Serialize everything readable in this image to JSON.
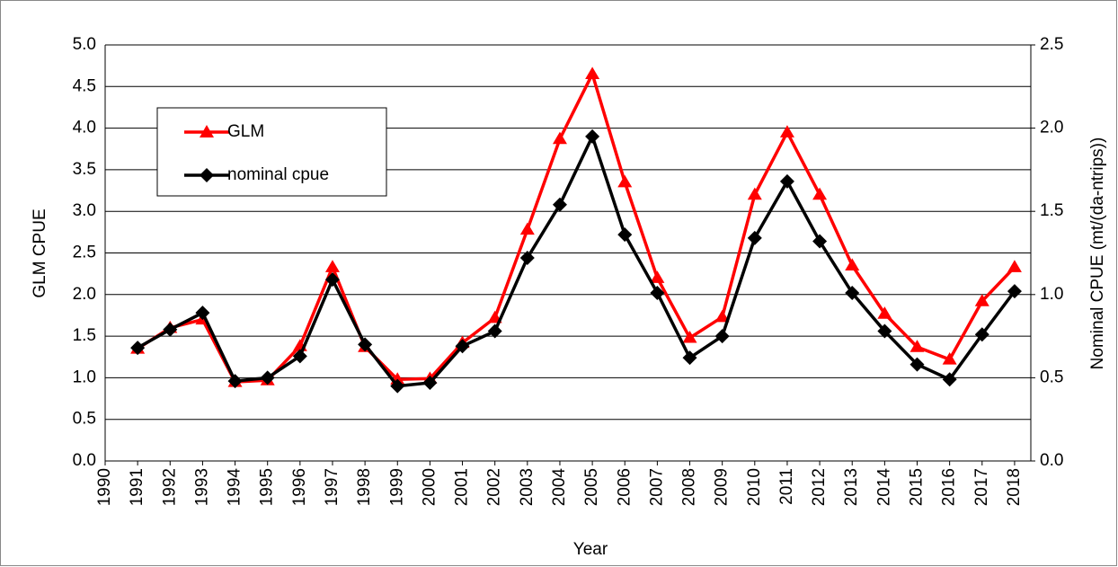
{
  "chart_data": {
    "type": "line",
    "x_label": "Year",
    "y_label": "GLM CPUE",
    "y2_label": "Nominal CPUE (mt/(da-ntrips))",
    "x": [
      1991,
      1992,
      1993,
      1994,
      1995,
      1996,
      1997,
      1998,
      1999,
      2000,
      2001,
      2002,
      2003,
      2004,
      2005,
      2006,
      2007,
      2008,
      2009,
      2010,
      2011,
      2012,
      2013,
      2014,
      2015,
      2016,
      2017,
      2018
    ],
    "series": [
      {
        "name": "GLM",
        "color": "#ff0000",
        "marker": "triangle",
        "axis": "y",
        "values": [
          1.35,
          1.6,
          1.7,
          0.95,
          0.97,
          1.38,
          2.33,
          1.37,
          0.98,
          0.99,
          1.42,
          1.72,
          2.78,
          3.87,
          4.65,
          3.35,
          2.2,
          1.48,
          1.73,
          3.2,
          3.95,
          3.2,
          2.35,
          1.77,
          1.37,
          1.22,
          1.92,
          2.33
        ]
      },
      {
        "name": "nominal cpue",
        "color": "#000000",
        "marker": "diamond",
        "axis": "y2",
        "values": [
          0.68,
          0.79,
          0.89,
          0.48,
          0.5,
          0.63,
          1.09,
          0.7,
          0.45,
          0.47,
          0.69,
          0.78,
          1.22,
          1.54,
          1.95,
          1.36,
          1.01,
          0.62,
          0.75,
          1.34,
          1.68,
          1.32,
          1.01,
          0.78,
          0.58,
          0.49,
          0.76,
          1.02
        ]
      }
    ],
    "xlim": [
      1990,
      2018.5
    ],
    "xticks": [
      1990,
      1991,
      1992,
      1993,
      1994,
      1995,
      1996,
      1997,
      1998,
      1999,
      2000,
      2001,
      2002,
      2003,
      2004,
      2005,
      2006,
      2007,
      2008,
      2009,
      2010,
      2011,
      2012,
      2013,
      2014,
      2015,
      2016,
      2017,
      2018
    ],
    "ylim": [
      0,
      5
    ],
    "yticks": [
      {
        "value": 0,
        "label": "0.0"
      },
      {
        "value": 0.5,
        "label": "0.5"
      },
      {
        "value": 1,
        "label": "1.0"
      },
      {
        "value": 1.5,
        "label": "1.5"
      },
      {
        "value": 2,
        "label": "2.0"
      },
      {
        "value": 2.5,
        "label": "2.5"
      },
      {
        "value": 3,
        "label": "3.0"
      },
      {
        "value": 3.5,
        "label": "3.5"
      },
      {
        "value": 4,
        "label": "4.0"
      },
      {
        "value": 4.5,
        "label": "4.5"
      },
      {
        "value": 5,
        "label": "5.0"
      }
    ],
    "y2lim": [
      0,
      2.5
    ],
    "y2ticks": [
      {
        "value": 0,
        "label": "0.0"
      },
      {
        "value": 0.5,
        "label": "0.5"
      },
      {
        "value": 1,
        "label": "1.0"
      },
      {
        "value": 1.5,
        "label": "1.5"
      },
      {
        "value": 2,
        "label": "2.0"
      },
      {
        "value": 2.5,
        "label": "2.5"
      }
    ],
    "grid": true,
    "legend": "upper left"
  }
}
